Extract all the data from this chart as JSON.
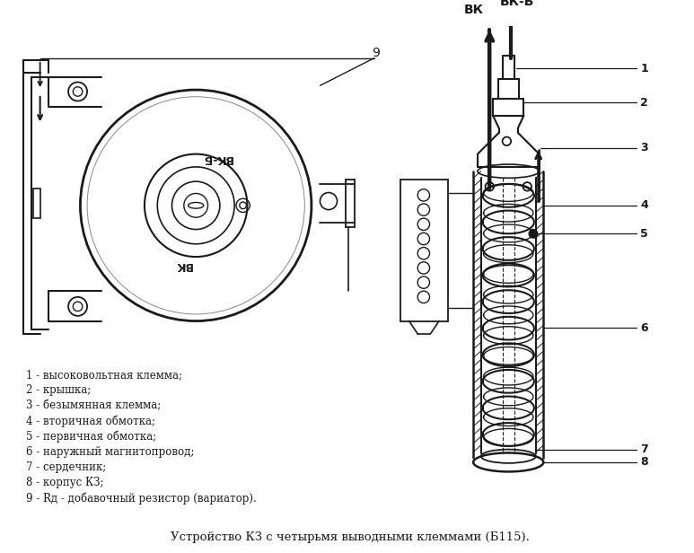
{
  "bg_color": "#ffffff",
  "line_color": "#1a1a1a",
  "title": "Устройство КЗ с четырьмя выводными клеммами (Б115).",
  "title_fontsize": 9.5,
  "legend_lines": [
    "1 - высоковольтная клемма;",
    "2 - крышка;",
    "3 - безымянная клемма;",
    "4 - вторичная обмотка;",
    "5 - первичная обмотка;",
    "6 - наружный магнитопровод;",
    "7 - сердечник;",
    "8 - корпус КЗ;",
    "9 - Rд - добавочный резистор (вариатор)."
  ],
  "legend_fontsize": 8.5,
  "label_vkb": "ВК-Б",
  "label_vk": "ВК",
  "figsize": [
    7.73,
    6.16
  ],
  "dpi": 100
}
